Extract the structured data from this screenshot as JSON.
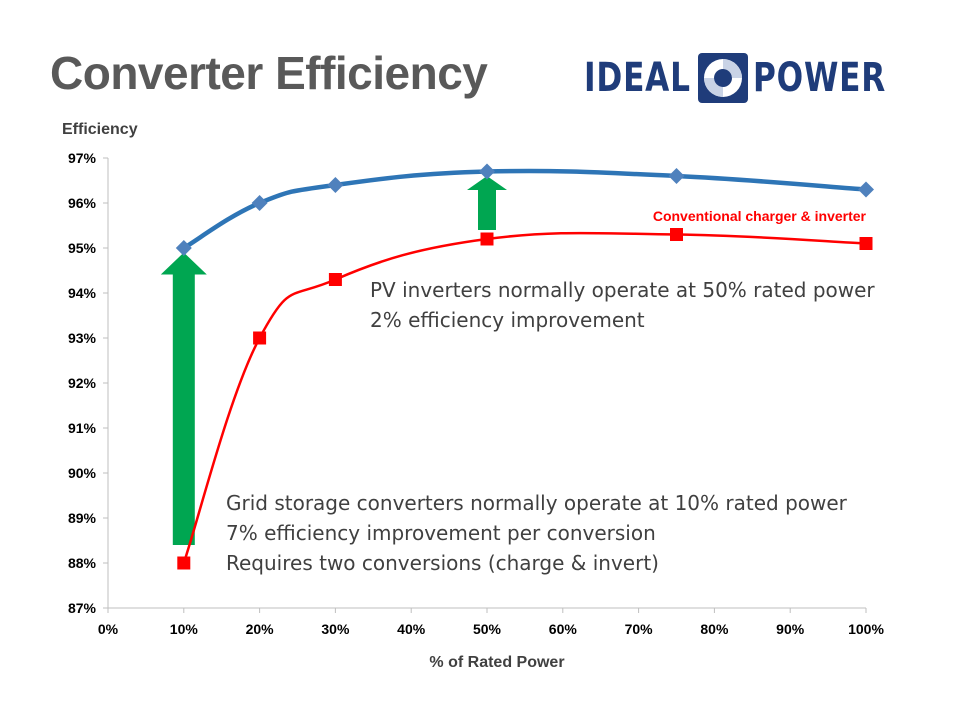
{
  "slide": {
    "title": "Converter Efficiency",
    "logo_left": "IDEAL",
    "logo_right": "POWER",
    "logo_color": "#1f3c7a"
  },
  "annotations": {
    "pv_line1": "PV inverters normally operate at 50% rated power",
    "pv_line2": "2% efficiency improvement",
    "grid_line1": "Grid storage converters normally operate at 10% rated power",
    "grid_line2": "7% efficiency improvement per conversion",
    "grid_line3": "Requires two conversions (charge & invert)"
  },
  "chart_data": {
    "type": "line",
    "title": "",
    "xlabel": "% of Rated Power",
    "ylabel": "Efficiency",
    "xlim": [
      0,
      100
    ],
    "ylim": [
      87,
      97
    ],
    "x_ticks": [
      "0%",
      "10%",
      "20%",
      "30%",
      "40%",
      "50%",
      "60%",
      "70%",
      "80%",
      "90%",
      "100%"
    ],
    "y_ticks": [
      "87%",
      "88%",
      "89%",
      "90%",
      "91%",
      "92%",
      "93%",
      "94%",
      "95%",
      "96%",
      "97%"
    ],
    "grid": false,
    "series": [
      {
        "name": "",
        "color": "#2e75b6",
        "marker_color": "#4f81bd",
        "marker": "diamond",
        "x": [
          10,
          20,
          30,
          50,
          75,
          100
        ],
        "y": [
          95.0,
          96.0,
          96.4,
          96.7,
          96.6,
          96.3
        ]
      },
      {
        "name": "Conventional charger & inverter",
        "color": "#ff0000",
        "marker_color": "#ff0000",
        "marker": "square",
        "x": [
          10,
          20,
          30,
          50,
          75,
          100
        ],
        "y": [
          88.0,
          93.0,
          94.3,
          95.2,
          95.3,
          95.1
        ]
      }
    ],
    "arrows": [
      {
        "x": 10,
        "from": 88.4,
        "to": 94.9,
        "color": "#00a651"
      },
      {
        "x": 50,
        "from": 95.4,
        "to": 96.6,
        "color": "#00a651"
      }
    ]
  }
}
